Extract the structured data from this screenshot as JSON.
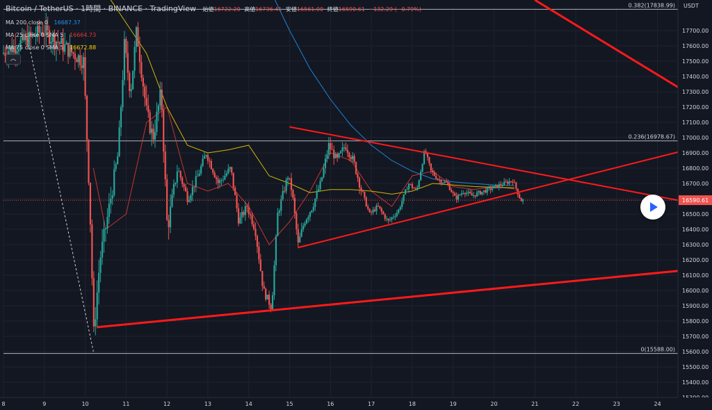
{
  "header": {
    "title": "Bitcoin / TetherUS · 1時間 · BINANCE · TradingView",
    "open_label": "始値",
    "open_value": "16722.20",
    "high_label": "高値",
    "high_value": "16736.41",
    "low_label": "安値",
    "low_value": "16561.00",
    "close_label": "終値",
    "close_value": "16590.61",
    "change_value": "−132.29 (−0.79%)"
  },
  "indicators": [
    {
      "label": "MA 200 close 0",
      "value": "16687.37",
      "color": "#2196f3"
    },
    {
      "label": "MA 25 close 0 SMA 5",
      "value": "16664.73",
      "color": "#e53935"
    },
    {
      "label": "MA 75 close 0 SMA 5",
      "value": "16672.88",
      "color": "#f5d300"
    }
  ],
  "colors": {
    "background": "#131722",
    "grid": "#1f2330",
    "axis_text": "#d1d4dc",
    "up": "#26a69a",
    "down": "#ef5350",
    "trendline": "#ff1a1a",
    "fib": "#d1d4dc"
  },
  "icons": {
    "collapse": "chevron-up-icon",
    "play": "play-icon"
  },
  "chart_data": {
    "type": "candlestick",
    "currency_label": "USDT",
    "last_price_label": "16590.61",
    "last_price": 16590.61,
    "ylim": [
      15300,
      17850
    ],
    "y_ticks": [
      15300,
      15400,
      15500,
      15600,
      15700,
      15800,
      15900,
      16000,
      16100,
      16200,
      16300,
      16400,
      16500,
      16600,
      16700,
      16800,
      16900,
      17000,
      17100,
      17200,
      17300,
      17400,
      17500,
      17600,
      17700
    ],
    "xlim": [
      8,
      24.5
    ],
    "x_ticks": [
      8,
      9,
      10,
      11,
      12,
      13,
      14,
      15,
      16,
      17,
      18,
      19,
      20,
      21,
      22,
      23,
      24
    ],
    "fib_levels": [
      {
        "label": "0.382(17838.99)",
        "value": 17838.99
      },
      {
        "label": "0.236(16978.67)",
        "value": 16978.67
      },
      {
        "label": "0(15588.00)",
        "value": 15588.0
      }
    ],
    "trendlines": [
      {
        "name": "upper-resistance",
        "x": [
          15.0,
          24.5
        ],
        "y": [
          17070,
          16590
        ]
      },
      {
        "name": "triangle-support",
        "x": [
          15.2,
          24.5
        ],
        "y": [
          16280,
          16905
        ]
      },
      {
        "name": "long-support",
        "x": [
          10.3,
          24.5
        ],
        "y": [
          15760,
          16128
        ]
      },
      {
        "name": "falling-channel",
        "x": [
          21.0,
          24.5
        ],
        "y": [
          17900,
          17330
        ]
      }
    ],
    "dashed_line": {
      "x": [
        8.6,
        10.2
      ],
      "y": [
        17640,
        15600
      ]
    },
    "ma_series": [
      {
        "name": "MA 200",
        "x": [
          14.5,
          15.0,
          15.5,
          16.0,
          16.5,
          17.0,
          17.5,
          18.0,
          18.5,
          19.0,
          19.5,
          20.0,
          20.5
        ],
        "y": [
          17980,
          17700,
          17450,
          17250,
          17080,
          16950,
          16850,
          16780,
          16730,
          16710,
          16700,
          16690,
          16687
        ]
      },
      {
        "name": "MA 25",
        "x": [
          10.2,
          10.5,
          11.0,
          11.5,
          12.0,
          12.5,
          13.0,
          13.5,
          14.0,
          14.5,
          15.0,
          15.5,
          16.0,
          16.5,
          17.0,
          17.5,
          18.0,
          18.5,
          19.0,
          19.5,
          20.0,
          20.5
        ],
        "y": [
          16800,
          16400,
          16500,
          17100,
          17200,
          16700,
          16650,
          16700,
          16550,
          16300,
          16450,
          16650,
          16900,
          16850,
          16650,
          16550,
          16750,
          16780,
          16680,
          16660,
          16680,
          16664
        ]
      },
      {
        "name": "MA 75",
        "x": [
          10.5,
          11.0,
          11.5,
          12.0,
          12.5,
          13.0,
          13.5,
          14.0,
          14.5,
          15.0,
          15.5,
          16.0,
          16.5,
          17.0,
          17.5,
          18.0,
          18.5,
          19.0,
          19.5,
          20.0,
          20.5
        ],
        "y": [
          17950,
          17750,
          17550,
          17200,
          16950,
          16900,
          16920,
          16950,
          16750,
          16700,
          16640,
          16660,
          16660,
          16650,
          16630,
          16650,
          16700,
          16690,
          16680,
          16675,
          16672
        ]
      }
    ],
    "price_path": {
      "x": [
        8.0,
        9.0,
        10.0,
        10.15,
        10.25,
        10.4,
        10.6,
        10.85,
        11.0,
        11.15,
        11.3,
        11.55,
        11.7,
        11.9,
        12.05,
        12.3,
        12.55,
        12.8,
        13.0,
        13.3,
        13.6,
        13.8,
        14.0,
        14.2,
        14.4,
        14.6,
        14.75,
        15.0,
        15.1,
        15.25,
        15.4,
        15.6,
        15.8,
        16.0,
        16.2,
        16.4,
        16.6,
        16.8,
        17.0,
        17.2,
        17.45,
        17.7,
        17.95,
        18.15,
        18.35,
        18.5,
        18.7,
        18.9,
        19.1,
        19.3,
        19.5,
        19.7,
        19.9,
        20.1,
        20.3,
        20.5,
        20.7
      ],
      "y": [
        17550,
        17700,
        17500,
        16600,
        15720,
        16200,
        16500,
        16900,
        17600,
        17300,
        17700,
        17150,
        17000,
        17300,
        16400,
        16800,
        16600,
        16750,
        16900,
        16700,
        16800,
        16450,
        16550,
        16400,
        16000,
        15890,
        16500,
        16750,
        16650,
        16300,
        16450,
        16550,
        16700,
        16950,
        16850,
        16950,
        16850,
        16650,
        16500,
        16550,
        16450,
        16520,
        16700,
        16650,
        16920,
        16780,
        16720,
        16700,
        16600,
        16650,
        16620,
        16640,
        16660,
        16680,
        16700,
        16722,
        16590
      ]
    }
  }
}
